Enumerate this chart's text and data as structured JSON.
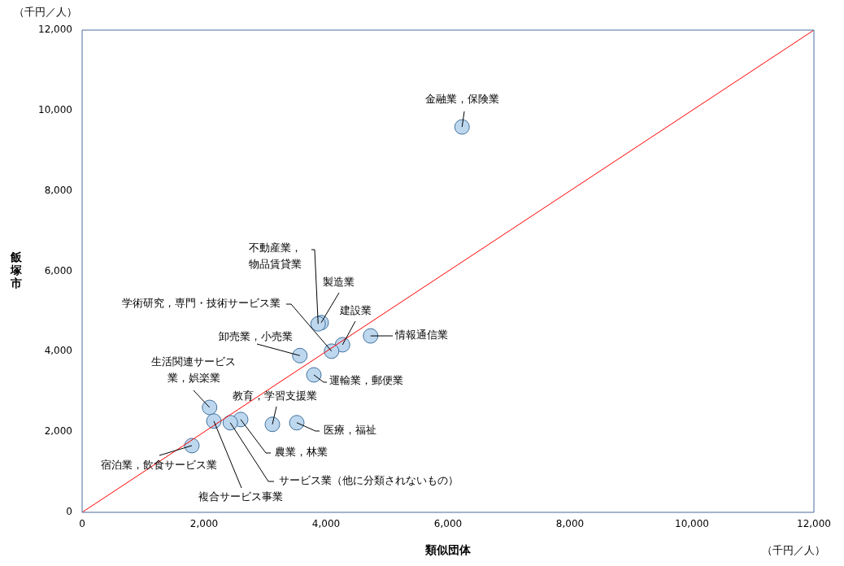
{
  "chart_data": {
    "type": "scatter",
    "xlabel": "類似団体",
    "ylabel": "飯塚市",
    "xlim": [
      0,
      12000
    ],
    "ylim": [
      0,
      12000
    ],
    "xticks": [
      {
        "value": 0,
        "label": "0"
      },
      {
        "value": 2000,
        "label": "2,000"
      },
      {
        "value": 4000,
        "label": "4,000"
      },
      {
        "value": 6000,
        "label": "6,000"
      },
      {
        "value": 8000,
        "label": "8,000"
      },
      {
        "value": 10000,
        "label": "10,000"
      },
      {
        "value": 12000,
        "label": "12,000"
      }
    ],
    "yticks": [
      {
        "value": 0,
        "label": "0"
      },
      {
        "value": 2000,
        "label": "2,000"
      },
      {
        "value": 4000,
        "label": "4,000"
      },
      {
        "value": 6000,
        "label": "6,000"
      },
      {
        "value": 8000,
        "label": "8,000"
      },
      {
        "value": 10000,
        "label": "10,000"
      },
      {
        "value": 12000,
        "label": "12,000"
      }
    ],
    "grid": false,
    "legend": false,
    "marker": "circle",
    "series": [
      {
        "color": "#bdd7ee",
        "x": [
          6230,
          4730,
          4270,
          3920,
          3870,
          4090,
          3570,
          3800,
          2090,
          3120,
          3520,
          2600,
          2430,
          2160,
          1800
        ],
        "values": [
          9590,
          4390,
          4170,
          4720,
          4690,
          4010,
          3900,
          3420,
          2610,
          2190,
          2230,
          2310,
          2230,
          2270,
          1660
        ]
      },
      {
        "type": "line",
        "color": "#ff0000",
        "line_style": "solid",
        "marker": "none",
        "x": [
          0,
          12000
        ],
        "values": [
          0,
          12000
        ]
      }
    ],
    "annotations": [
      {
        "text": "金融業，保険業",
        "x": 6230,
        "y": 9590
      },
      {
        "text": "情報通信業",
        "x": 4730,
        "y": 4390
      },
      {
        "text": "建設業",
        "x": 4270,
        "y": 4170
      },
      {
        "text": "製造業",
        "x": 3920,
        "y": 4720
      },
      {
        "text": "不動産業，物品賃貸業",
        "x": 3870,
        "y": 4690
      },
      {
        "text": "学術研究，専門・技術サービス業",
        "x": 4090,
        "y": 4010
      },
      {
        "text": "卸売業，小売業",
        "x": 3570,
        "y": 3900
      },
      {
        "text": "運輸業，郵便業",
        "x": 3800,
        "y": 3420
      },
      {
        "text": "生活関連サービス業，娯楽業",
        "x": 2090,
        "y": 2610
      },
      {
        "text": "教育，学習支援業",
        "x": 3120,
        "y": 2190
      },
      {
        "text": "医療，福祉",
        "x": 3520,
        "y": 2230
      },
      {
        "text": "農業，林業",
        "x": 2600,
        "y": 2310
      },
      {
        "text": "サービス業（他に分類されないもの）",
        "x": 2430,
        "y": 2230
      },
      {
        "text": "複合サービス事業",
        "x": 2160,
        "y": 2270
      },
      {
        "text": "宿泊業，飲食サービス業",
        "x": 1800,
        "y": 1660
      },
      "（千円／人）",
      "（千円／人）"
    ]
  }
}
